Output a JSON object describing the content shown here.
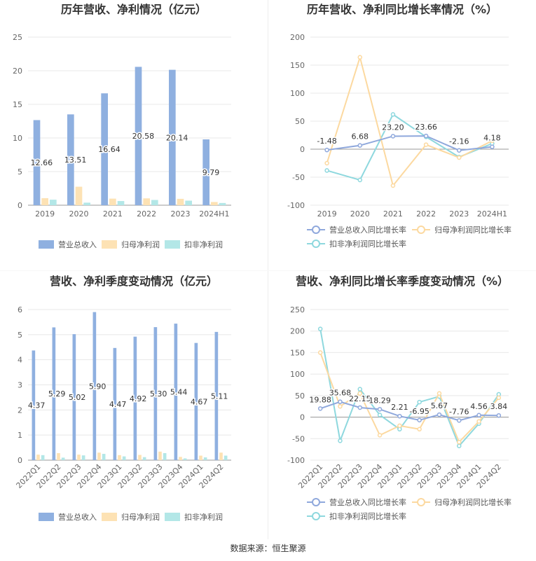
{
  "source": "数据来源：恒生聚源",
  "chart_data": [
    {
      "type": "bar",
      "title": "历年营收、净利情况（亿元）",
      "categories": [
        "2019",
        "2020",
        "2021",
        "2022",
        "2023",
        "2024H1"
      ],
      "ylim": [
        0,
        25
      ],
      "yticks": [
        "0",
        "5",
        "10",
        "15",
        "20",
        "25"
      ],
      "series": [
        {
          "name": "营业总收入",
          "color": "#8fb0e0",
          "values": [
            12.66,
            13.51,
            16.64,
            20.58,
            20.14,
            9.79
          ]
        },
        {
          "name": "归母净利润",
          "color": "#fde2b4",
          "values": [
            1.05,
            2.75,
            0.98,
            1.02,
            0.95,
            0.48
          ]
        },
        {
          "name": "扣非净利润",
          "color": "#b3e7e7",
          "values": [
            0.82,
            0.38,
            0.62,
            0.78,
            0.68,
            0.33
          ]
        }
      ],
      "labels": [
        "12.66",
        "13.51",
        "16.64",
        "20.58",
        "20.14",
        "9.79"
      ]
    },
    {
      "type": "line",
      "title": "历年营收、净利同比增长率情况（%）",
      "categories": [
        "2019",
        "2020",
        "2021",
        "2022",
        "2023",
        "2024H1"
      ],
      "ylim": [
        -100,
        200
      ],
      "yticks": [
        "-100",
        "-50",
        "0",
        "50",
        "100",
        "150",
        "200"
      ],
      "series": [
        {
          "name": "营业总收入同比增长率",
          "color": "#8fa8dc",
          "values": [
            -1.48,
            6.68,
            23.2,
            23.66,
            -2.16,
            4.18
          ]
        },
        {
          "name": "归母净利润同比增长率",
          "color": "#fcd9a0",
          "values": [
            -25,
            164,
            -65,
            8,
            -15,
            15
          ]
        },
        {
          "name": "扣非净利润同比增长率",
          "color": "#8ed8de",
          "values": [
            -38,
            -55,
            62,
            22,
            -14,
            10
          ]
        }
      ],
      "labels": [
        "-1.48",
        "6.68",
        "23.20",
        "23.66",
        "-2.16",
        "4.18"
      ]
    },
    {
      "type": "bar",
      "title": "营收、净利季度变动情况（亿元）",
      "categories": [
        "2022Q1",
        "2022Q2",
        "2022Q3",
        "2022Q4",
        "2023Q1",
        "2023Q2",
        "2023Q3",
        "2023Q4",
        "2024Q1",
        "2024Q2"
      ],
      "ylim": [
        0,
        6
      ],
      "yticks": [
        "0",
        "1",
        "2",
        "3",
        "4",
        "5",
        "6"
      ],
      "series": [
        {
          "name": "营业总收入",
          "color": "#8fb0e0",
          "values": [
            4.37,
            5.29,
            5.02,
            5.9,
            4.47,
            4.92,
            5.3,
            5.44,
            4.67,
            5.11
          ]
        },
        {
          "name": "归母净利润",
          "color": "#fde2b4",
          "values": [
            0.22,
            0.28,
            0.22,
            0.3,
            0.2,
            0.21,
            0.34,
            0.13,
            0.18,
            0.3
          ]
        },
        {
          "name": "扣非净利润",
          "color": "#b3e7e7",
          "values": [
            0.2,
            0.1,
            0.19,
            0.25,
            0.15,
            0.12,
            0.28,
            0.07,
            0.11,
            0.18
          ]
        }
      ],
      "labels": [
        "4.37",
        "5.29",
        "5.02",
        "5.90",
        "4.47",
        "4.92",
        "5.30",
        "5.44",
        "4.67",
        "5.11"
      ]
    },
    {
      "type": "line",
      "title": "营收、净利同比增长率季度变动情况（%）",
      "categories": [
        "2022Q1",
        "2022Q2",
        "2022Q3",
        "2022Q4",
        "2023Q1",
        "2023Q2",
        "2023Q3",
        "2023Q4",
        "2024Q1",
        "2024Q2"
      ],
      "ylim": [
        -100,
        250
      ],
      "yticks": [
        "-100",
        "-50",
        "0",
        "50",
        "100",
        "150",
        "200",
        "250"
      ],
      "series": [
        {
          "name": "营业总收入同比增长率",
          "color": "#8fa8dc",
          "values": [
            19.88,
            35.68,
            22.15,
            18.29,
            2.21,
            -6.95,
            5.67,
            -7.76,
            4.56,
            3.84
          ]
        },
        {
          "name": "归母净利润同比增长率",
          "color": "#fcd9a0",
          "values": [
            150,
            25,
            55,
            -42,
            -20,
            -28,
            55,
            -58,
            -10,
            45
          ]
        },
        {
          "name": "扣非净利润同比增长率",
          "color": "#8ed8de",
          "values": [
            205,
            -55,
            65,
            5,
            -28,
            35,
            48,
            -67,
            -15,
            53
          ]
        }
      ],
      "labels": [
        "19.88",
        "35.68",
        "22.15",
        "18.29",
        "2.21",
        "-6.95",
        "5.67",
        "-7.76",
        "4.56",
        "3.84"
      ]
    }
  ]
}
